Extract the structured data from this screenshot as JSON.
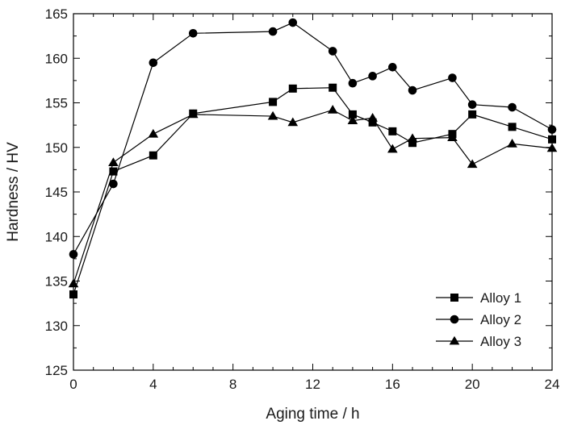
{
  "chart_data": {
    "type": "line",
    "title": "",
    "xlabel": "Aging time / h",
    "ylabel": "Hardness / HV",
    "xlim": [
      0,
      24
    ],
    "ylim": [
      125,
      165
    ],
    "xticks": [
      0,
      4,
      8,
      12,
      16,
      20,
      24
    ],
    "yticks": [
      125,
      130,
      135,
      140,
      145,
      150,
      155,
      160,
      165
    ],
    "xtick_labels": [
      "0",
      "4",
      "8",
      "12",
      "16",
      "20",
      "24"
    ],
    "ytick_labels": [
      "125",
      "130",
      "135",
      "140",
      "145",
      "150",
      "155",
      "160",
      "165"
    ],
    "legend_position": "bottom-right",
    "grid": false,
    "series": [
      {
        "name": "Alloy 1",
        "marker": "square",
        "x": [
          0,
          2,
          4,
          6,
          10,
          11,
          13,
          14,
          15,
          16,
          17,
          19,
          20,
          22,
          24
        ],
        "values": [
          133.5,
          147.3,
          149.1,
          153.8,
          155.1,
          156.6,
          156.7,
          153.7,
          152.8,
          151.8,
          150.5,
          151.5,
          153.7,
          152.3,
          150.9
        ]
      },
      {
        "name": "Alloy 2",
        "marker": "circle",
        "x": [
          0,
          2,
          4,
          6,
          10,
          11,
          13,
          14,
          15,
          16,
          17,
          19,
          20,
          22,
          24
        ],
        "values": [
          138.0,
          145.9,
          159.5,
          162.8,
          163.0,
          164.0,
          160.8,
          157.2,
          158.0,
          159.0,
          156.4,
          157.8,
          154.8,
          154.5,
          152.0
        ]
      },
      {
        "name": "Alloy 3",
        "marker": "triangle",
        "x": [
          0,
          2,
          4,
          6,
          10,
          11,
          13,
          14,
          15,
          16,
          17,
          19,
          20,
          22,
          24
        ],
        "values": [
          134.7,
          148.3,
          151.5,
          153.7,
          153.5,
          152.8,
          154.2,
          153.0,
          153.3,
          149.8,
          151.0,
          151.1,
          148.1,
          150.4,
          149.9
        ]
      }
    ]
  }
}
